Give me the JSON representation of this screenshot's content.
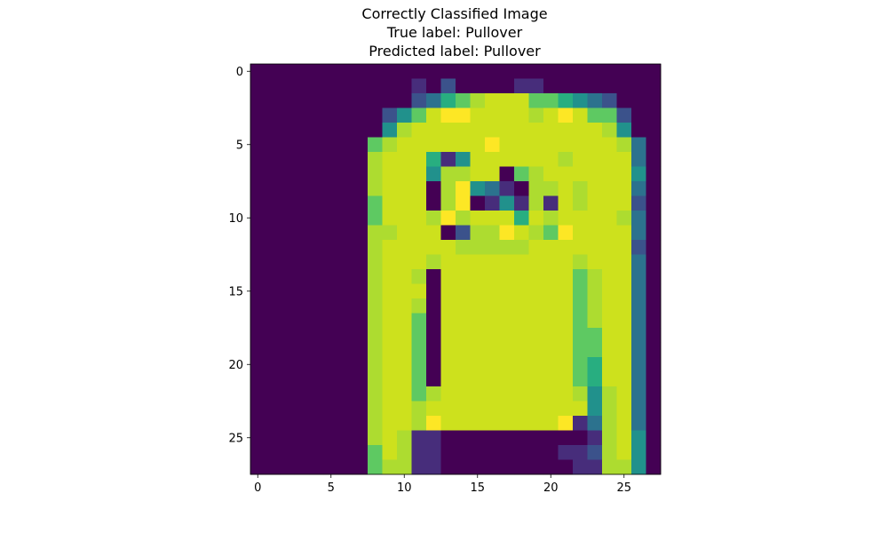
{
  "chart_data": {
    "type": "heatmap",
    "title": [
      "Correctly Classified Image",
      "True label: Pullover",
      "Predicted label: Pullover"
    ],
    "xlabel": "",
    "ylabel": "",
    "xlim": [
      -0.5,
      27.5
    ],
    "ylim": [
      27.5,
      -0.5
    ],
    "xticks": [
      0,
      5,
      10,
      15,
      20,
      25
    ],
    "yticks": [
      0,
      5,
      10,
      15,
      20,
      25
    ],
    "colormap": "viridis",
    "grid": false,
    "rows": [
      "0000000000000000000000000000",
      "0000000000010200001100000000",
      "0000000000023567888665432000",
      "0000000002468998888789866200",
      "0000000004788888888888887400",
      "0000000067888888988888888730",
      "0000000078885148888887888830",
      "0000000078884778806788888840",
      "0000000078880794310778788830",
      "0000000068880790141718788820",
      "0000000068887978885878888730",
      "0000000077888027798769888830",
      "0000000078888877777888888820",
      "0000000078887888888888788830",
      "0000000078870888888888678830",
      "0000000078880888888888678830",
      "0000000078870888888888678830",
      "0000000078860888888888678830",
      "0000000078860888888888668830",
      "0000000078860888888888668830",
      "0000000078860888888888658830",
      "0000000078860888888888658830",
      "0000000078867888888888747830",
      "0000000078878888888888847830",
      "0000000078879888888889137830",
      "0000000078711000000000017840",
      "0000000068711000000001127840",
      "0000000067711000000000117740"
    ]
  }
}
